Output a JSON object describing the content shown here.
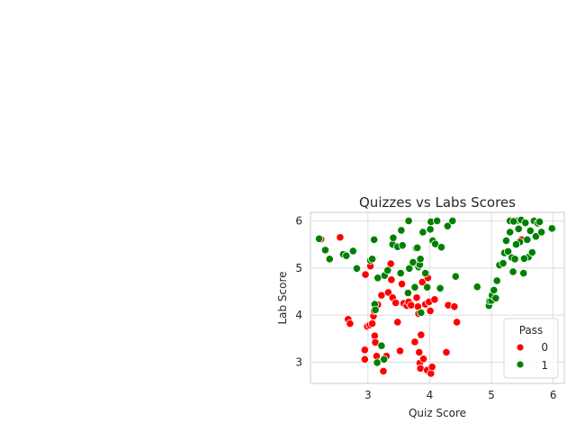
{
  "chart_data": {
    "type": "scatter",
    "title": "Quizzes vs Labs Scores",
    "xlabel": "Quiz Score",
    "ylabel": "Lab Score",
    "xlim": [
      2.07,
      6.18
    ],
    "ylim": [
      2.55,
      6.18
    ],
    "xticks": [
      3,
      4,
      5,
      6
    ],
    "yticks": [
      3,
      4,
      5,
      6
    ],
    "grid": true,
    "legend": {
      "title": "Pass",
      "position": "bottom-right",
      "entries": [
        {
          "label": "0",
          "color": "#ff0000"
        },
        {
          "label": "1",
          "color": "#008000"
        }
      ]
    },
    "series": [
      {
        "name": "0",
        "color": "#ff0000",
        "points": [
          [
            2.24,
            5.61
          ],
          [
            2.55,
            5.65
          ],
          [
            2.68,
            3.91
          ],
          [
            2.71,
            3.82
          ],
          [
            2.95,
            3.26
          ],
          [
            2.95,
            3.06
          ],
          [
            2.96,
            4.86
          ],
          [
            2.99,
            3.76
          ],
          [
            3.03,
            3.79
          ],
          [
            3.04,
            5.04
          ],
          [
            3.07,
            3.82
          ],
          [
            3.09,
            3.98
          ],
          [
            3.1,
            4.09
          ],
          [
            3.11,
            3.56
          ],
          [
            3.12,
            3.42
          ],
          [
            3.14,
            3.13
          ],
          [
            3.16,
            4.22
          ],
          [
            3.22,
            4.42
          ],
          [
            3.25,
            2.81
          ],
          [
            3.3,
            3.13
          ],
          [
            3.33,
            4.48
          ],
          [
            3.37,
            5.09
          ],
          [
            3.38,
            4.75
          ],
          [
            3.4,
            4.37
          ],
          [
            3.45,
            4.26
          ],
          [
            3.48,
            3.85
          ],
          [
            3.52,
            3.24
          ],
          [
            3.55,
            4.66
          ],
          [
            3.58,
            4.25
          ],
          [
            3.63,
            4.2
          ],
          [
            3.66,
            4.28
          ],
          [
            3.7,
            4.21
          ],
          [
            3.76,
            3.43
          ],
          [
            3.79,
            4.37
          ],
          [
            3.81,
            4.18
          ],
          [
            3.82,
            4.03
          ],
          [
            3.83,
            3.21
          ],
          [
            3.84,
            2.98
          ],
          [
            3.85,
            2.87
          ],
          [
            3.86,
            3.58
          ],
          [
            3.88,
            4.7
          ],
          [
            3.9,
            3.07
          ],
          [
            3.93,
            4.23
          ],
          [
            3.96,
            2.83
          ],
          [
            3.97,
            4.79
          ],
          [
            3.99,
            4.28
          ],
          [
            4.01,
            4.09
          ],
          [
            4.02,
            2.76
          ],
          [
            4.04,
            2.9
          ],
          [
            4.08,
            4.33
          ],
          [
            4.27,
            3.21
          ],
          [
            4.3,
            4.21
          ],
          [
            4.4,
            4.18
          ],
          [
            4.44,
            3.85
          ],
          [
            5.49,
            5.6
          ]
        ]
      },
      {
        "name": "1",
        "color": "#008000",
        "points": [
          [
            2.21,
            5.62
          ],
          [
            2.31,
            5.38
          ],
          [
            2.38,
            5.19
          ],
          [
            2.6,
            5.29
          ],
          [
            2.65,
            5.26
          ],
          [
            2.76,
            5.36
          ],
          [
            2.82,
            4.99
          ],
          [
            3.04,
            5.16
          ],
          [
            3.07,
            5.19
          ],
          [
            3.1,
            5.6
          ],
          [
            3.11,
            4.23
          ],
          [
            3.12,
            4.11
          ],
          [
            3.15,
            2.99
          ],
          [
            3.16,
            4.79
          ],
          [
            3.22,
            3.35
          ],
          [
            3.26,
            3.06
          ],
          [
            3.27,
            4.84
          ],
          [
            3.32,
            4.95
          ],
          [
            3.4,
            5.5
          ],
          [
            3.41,
            5.64
          ],
          [
            3.48,
            5.45
          ],
          [
            3.53,
            4.89
          ],
          [
            3.54,
            5.8
          ],
          [
            3.56,
            5.48
          ],
          [
            3.65,
            4.47
          ],
          [
            3.66,
            6.0
          ],
          [
            3.67,
            4.99
          ],
          [
            3.73,
            5.12
          ],
          [
            3.76,
            4.59
          ],
          [
            3.78,
            5.42
          ],
          [
            3.8,
            5.43
          ],
          [
            3.82,
            5.02
          ],
          [
            3.84,
            5.07
          ],
          [
            3.85,
            5.19
          ],
          [
            3.86,
            4.05
          ],
          [
            3.89,
            5.76
          ],
          [
            3.93,
            4.89
          ],
          [
            3.96,
            4.59
          ],
          [
            4.01,
            5.82
          ],
          [
            4.02,
            5.98
          ],
          [
            4.05,
            5.58
          ],
          [
            4.09,
            5.51
          ],
          [
            4.12,
            6.0
          ],
          [
            4.17,
            4.57
          ],
          [
            4.19,
            5.44
          ],
          [
            4.29,
            5.89
          ],
          [
            4.37,
            6.0
          ],
          [
            4.42,
            4.82
          ],
          [
            4.77,
            4.6
          ],
          [
            4.96,
            4.2
          ],
          [
            4.97,
            4.3
          ],
          [
            5.0,
            4.31
          ],
          [
            5.01,
            4.42
          ],
          [
            5.04,
            4.53
          ],
          [
            5.07,
            4.36
          ],
          [
            5.09,
            4.73
          ],
          [
            5.13,
            5.06
          ],
          [
            5.19,
            5.1
          ],
          [
            5.21,
            5.32
          ],
          [
            5.24,
            5.58
          ],
          [
            5.27,
            5.35
          ],
          [
            5.3,
            6.0
          ],
          [
            5.33,
            5.22
          ],
          [
            5.35,
            4.92
          ],
          [
            5.38,
            5.19
          ],
          [
            5.41,
            6.0
          ],
          [
            5.44,
            5.83
          ],
          [
            5.46,
            5.55
          ],
          [
            5.48,
            6.02
          ],
          [
            5.52,
            4.89
          ],
          [
            5.55,
            5.96
          ],
          [
            5.58,
            5.6
          ],
          [
            5.6,
            5.23
          ],
          [
            5.63,
            5.79
          ],
          [
            5.66,
            5.33
          ],
          [
            5.69,
            6.0
          ],
          [
            5.72,
            5.67
          ],
          [
            5.75,
            5.95
          ],
          [
            5.78,
            5.98
          ],
          [
            5.81,
            5.76
          ],
          [
            5.98,
            5.84
          ],
          [
            5.4,
            5.5
          ],
          [
            5.3,
            5.76
          ],
          [
            5.36,
            5.99
          ],
          [
            5.53,
            5.2
          ]
        ]
      }
    ]
  }
}
